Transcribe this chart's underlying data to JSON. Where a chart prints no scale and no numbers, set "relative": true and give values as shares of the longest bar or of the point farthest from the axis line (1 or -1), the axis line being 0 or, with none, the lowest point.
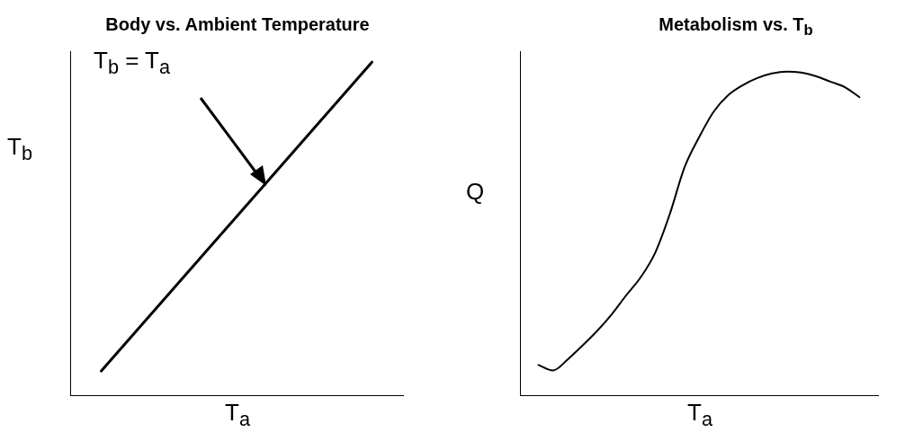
{
  "chart_data": [
    {
      "type": "line",
      "title": "Body vs. Ambient Temperature",
      "xlabel": "T$_{a}$",
      "ylabel": "T$_{b}$",
      "relative": true,
      "categories": [
        null,
        null
      ],
      "series": [
        {
          "color": "#000000",
          "values": [
            0.075,
            1
          ]
        }
      ],
      "annotations": [
        "T$_{b}$ = T$_{a}$"
      ],
      "grid": false,
      "tick_labels": false,
      "marker": "none"
    },
    {
      "type": "line",
      "title": "Metabolism vs. T$_{b}$",
      "xlabel": "T$_{a}$",
      "ylabel": "Q",
      "relative": true,
      "categories": [
        null,
        null,
        null,
        null,
        null,
        null,
        null,
        null,
        null,
        null,
        null,
        null,
        null,
        null,
        null,
        null,
        null,
        null,
        null,
        null,
        null,
        null,
        null
      ],
      "series": [
        {
          "color": "#000000",
          "values": [
            0.096,
            0.079,
            0.113,
            0.155,
            0.2,
            0.251,
            0.31,
            0.366,
            0.442,
            0.561,
            0.704,
            0.797,
            0.876,
            0.927,
            0.958,
            0.98,
            0.994,
            1,
            0.997,
            0.986,
            0.969,
            0.952,
            0.921
          ]
        }
      ],
      "grid": false,
      "tick_labels": false,
      "marker": "none"
    }
  ]
}
